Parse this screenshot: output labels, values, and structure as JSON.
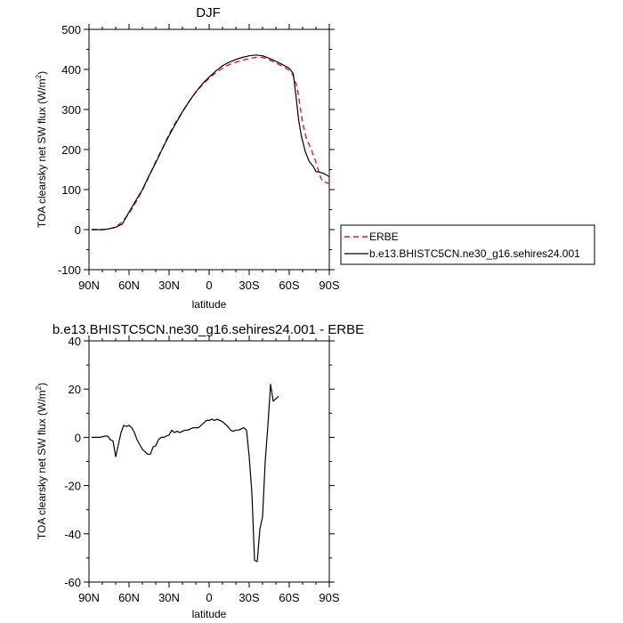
{
  "chart_data": [
    {
      "type": "line",
      "title": "DJF",
      "xlabel": "latitude",
      "ylabel_main": "TOA clearsky net SW flux (W/m",
      "ylabel_sup": "2",
      "ylabel_close": ")",
      "xlim": [
        -90,
        90
      ],
      "ylim": [
        -100,
        500
      ],
      "xticks": [
        {
          "value": -90,
          "label": "90N"
        },
        {
          "value": -60,
          "label": "60N"
        },
        {
          "value": -30,
          "label": "30N"
        },
        {
          "value": 0,
          "label": "0"
        },
        {
          "value": 30,
          "label": "30S"
        },
        {
          "value": 60,
          "label": "60S"
        },
        {
          "value": 90,
          "label": "90S"
        }
      ],
      "yticks": [
        -100,
        0,
        100,
        200,
        300,
        400,
        500
      ],
      "legend_placement": "right, outside plot",
      "series": [
        {
          "name": "ERBE",
          "color": "#e41a1c",
          "dash": "dashed",
          "points": [
            [
              -88,
              0
            ],
            [
              -80,
              0
            ],
            [
              -75,
              2
            ],
            [
              -70,
              6
            ],
            [
              -65,
              20
            ],
            [
              -60,
              40
            ],
            [
              -55,
              68
            ],
            [
              -50,
              98
            ],
            [
              -45,
              133
            ],
            [
              -40,
              170
            ],
            [
              -35,
              203
            ],
            [
              -30,
              238
            ],
            [
              -25,
              268
            ],
            [
              -20,
              295
            ],
            [
              -15,
              320
            ],
            [
              -10,
              343
            ],
            [
              -5,
              362
            ],
            [
              0,
              378
            ],
            [
              5,
              392
            ],
            [
              10,
              403
            ],
            [
              15,
              412
            ],
            [
              20,
              418
            ],
            [
              25,
              423
            ],
            [
              30,
              427
            ],
            [
              35,
              430
            ],
            [
              40,
              430
            ],
            [
              45,
              424
            ],
            [
              50,
              416
            ],
            [
              55,
              408
            ],
            [
              60,
              398
            ],
            [
              63,
              385
            ],
            [
              66,
              355
            ],
            [
              68,
              310
            ],
            [
              70,
              268
            ],
            [
              73,
              225
            ],
            [
              76,
              205
            ],
            [
              80,
              168
            ],
            [
              83,
              135
            ],
            [
              85,
              120
            ],
            [
              90,
              115
            ]
          ]
        },
        {
          "name": "b.e13.BHISTC5CN.ne30_g16.sehires24.001",
          "color": "#000000",
          "dash": "solid",
          "points": [
            [
              -88,
              0
            ],
            [
              -80,
              0
            ],
            [
              -75,
              2
            ],
            [
              -70,
              6
            ],
            [
              -65,
              14
            ],
            [
              -60,
              44
            ],
            [
              -55,
              72
            ],
            [
              -50,
              100
            ],
            [
              -45,
              135
            ],
            [
              -40,
              167
            ],
            [
              -35,
              202
            ],
            [
              -30,
              235
            ],
            [
              -25,
              265
            ],
            [
              -20,
              294
            ],
            [
              -15,
              320
            ],
            [
              -10,
              344
            ],
            [
              -5,
              364
            ],
            [
              0,
              381
            ],
            [
              5,
              396
            ],
            [
              10,
              409
            ],
            [
              15,
              418
            ],
            [
              20,
              425
            ],
            [
              25,
              430
            ],
            [
              30,
              434
            ],
            [
              35,
              436
            ],
            [
              40,
              434
            ],
            [
              45,
              428
            ],
            [
              50,
              420
            ],
            [
              55,
              412
            ],
            [
              60,
              403
            ],
            [
              63,
              390
            ],
            [
              65,
              335
            ],
            [
              67,
              275
            ],
            [
              69,
              235
            ],
            [
              72,
              195
            ],
            [
              75,
              170
            ],
            [
              78,
              158
            ],
            [
              80,
              145
            ],
            [
              83,
              143
            ],
            [
              86,
              140
            ],
            [
              90,
              132
            ]
          ]
        }
      ]
    },
    {
      "type": "line",
      "title": "b.e13.BHISTC5CN.ne30_g16.sehires24.001 - ERBE",
      "xlabel": "latitude",
      "ylabel_main": "TOA clearsky net SW flux (W/m",
      "ylabel_sup": "2",
      "ylabel_close": ")",
      "xlim": [
        -90,
        90
      ],
      "ylim": [
        -60,
        40
      ],
      "xticks": [
        {
          "value": -90,
          "label": "90N"
        },
        {
          "value": -60,
          "label": "60N"
        },
        {
          "value": -30,
          "label": "30N"
        },
        {
          "value": 0,
          "label": "0"
        },
        {
          "value": 30,
          "label": "30S"
        },
        {
          "value": 60,
          "label": "60S"
        },
        {
          "value": 90,
          "label": "90S"
        }
      ],
      "yticks": [
        -60,
        -40,
        -20,
        0,
        20,
        40
      ],
      "series": [
        {
          "color": "#000000",
          "dash": "solid",
          "points": [
            [
              -88,
              0
            ],
            [
              -84,
              0
            ],
            [
              -82,
              0
            ],
            [
              -78,
              0.5
            ],
            [
              -76,
              0.5
            ],
            [
              -74,
              -1
            ],
            [
              -72,
              -1.5
            ],
            [
              -70,
              -8
            ],
            [
              -68,
              -3
            ],
            [
              -66,
              2
            ],
            [
              -64,
              5
            ],
            [
              -62,
              4.5
            ],
            [
              -60,
              5
            ],
            [
              -58,
              4
            ],
            [
              -56,
              2
            ],
            [
              -54,
              -1
            ],
            [
              -52,
              -3
            ],
            [
              -50,
              -5
            ],
            [
              -48,
              -6
            ],
            [
              -46,
              -7
            ],
            [
              -44,
              -7
            ],
            [
              -42,
              -4
            ],
            [
              -40,
              -3.5
            ],
            [
              -38,
              -1
            ],
            [
              -36,
              0
            ],
            [
              -34,
              0
            ],
            [
              -32,
              0.5
            ],
            [
              -30,
              1
            ],
            [
              -28,
              3
            ],
            [
              -26,
              2
            ],
            [
              -24,
              2.5
            ],
            [
              -22,
              2
            ],
            [
              -20,
              2.5
            ],
            [
              -18,
              3
            ],
            [
              -16,
              3
            ],
            [
              -14,
              3.5
            ],
            [
              -12,
              4
            ],
            [
              -10,
              4
            ],
            [
              -8,
              4
            ],
            [
              -6,
              5
            ],
            [
              -4,
              6
            ],
            [
              -2,
              7
            ],
            [
              0,
              7
            ],
            [
              2,
              7.5
            ],
            [
              4,
              7
            ],
            [
              6,
              7.5
            ],
            [
              8,
              7
            ],
            [
              10,
              6.5
            ],
            [
              12,
              5.5
            ],
            [
              14,
              4.5
            ],
            [
              16,
              3
            ],
            [
              18,
              2.5
            ],
            [
              20,
              3
            ],
            [
              22,
              3
            ],
            [
              24,
              3.5
            ],
            [
              26,
              4
            ],
            [
              28,
              3
            ],
            [
              30,
              -8
            ],
            [
              32,
              -23
            ],
            [
              34,
              -51
            ],
            [
              36,
              -51.5
            ],
            [
              38,
              -38
            ],
            [
              40,
              -33
            ],
            [
              42,
              -10
            ],
            [
              44,
              5
            ],
            [
              46,
              22
            ],
            [
              48,
              15
            ],
            [
              50,
              16
            ],
            [
              52,
              17
            ]
          ]
        }
      ]
    }
  ]
}
